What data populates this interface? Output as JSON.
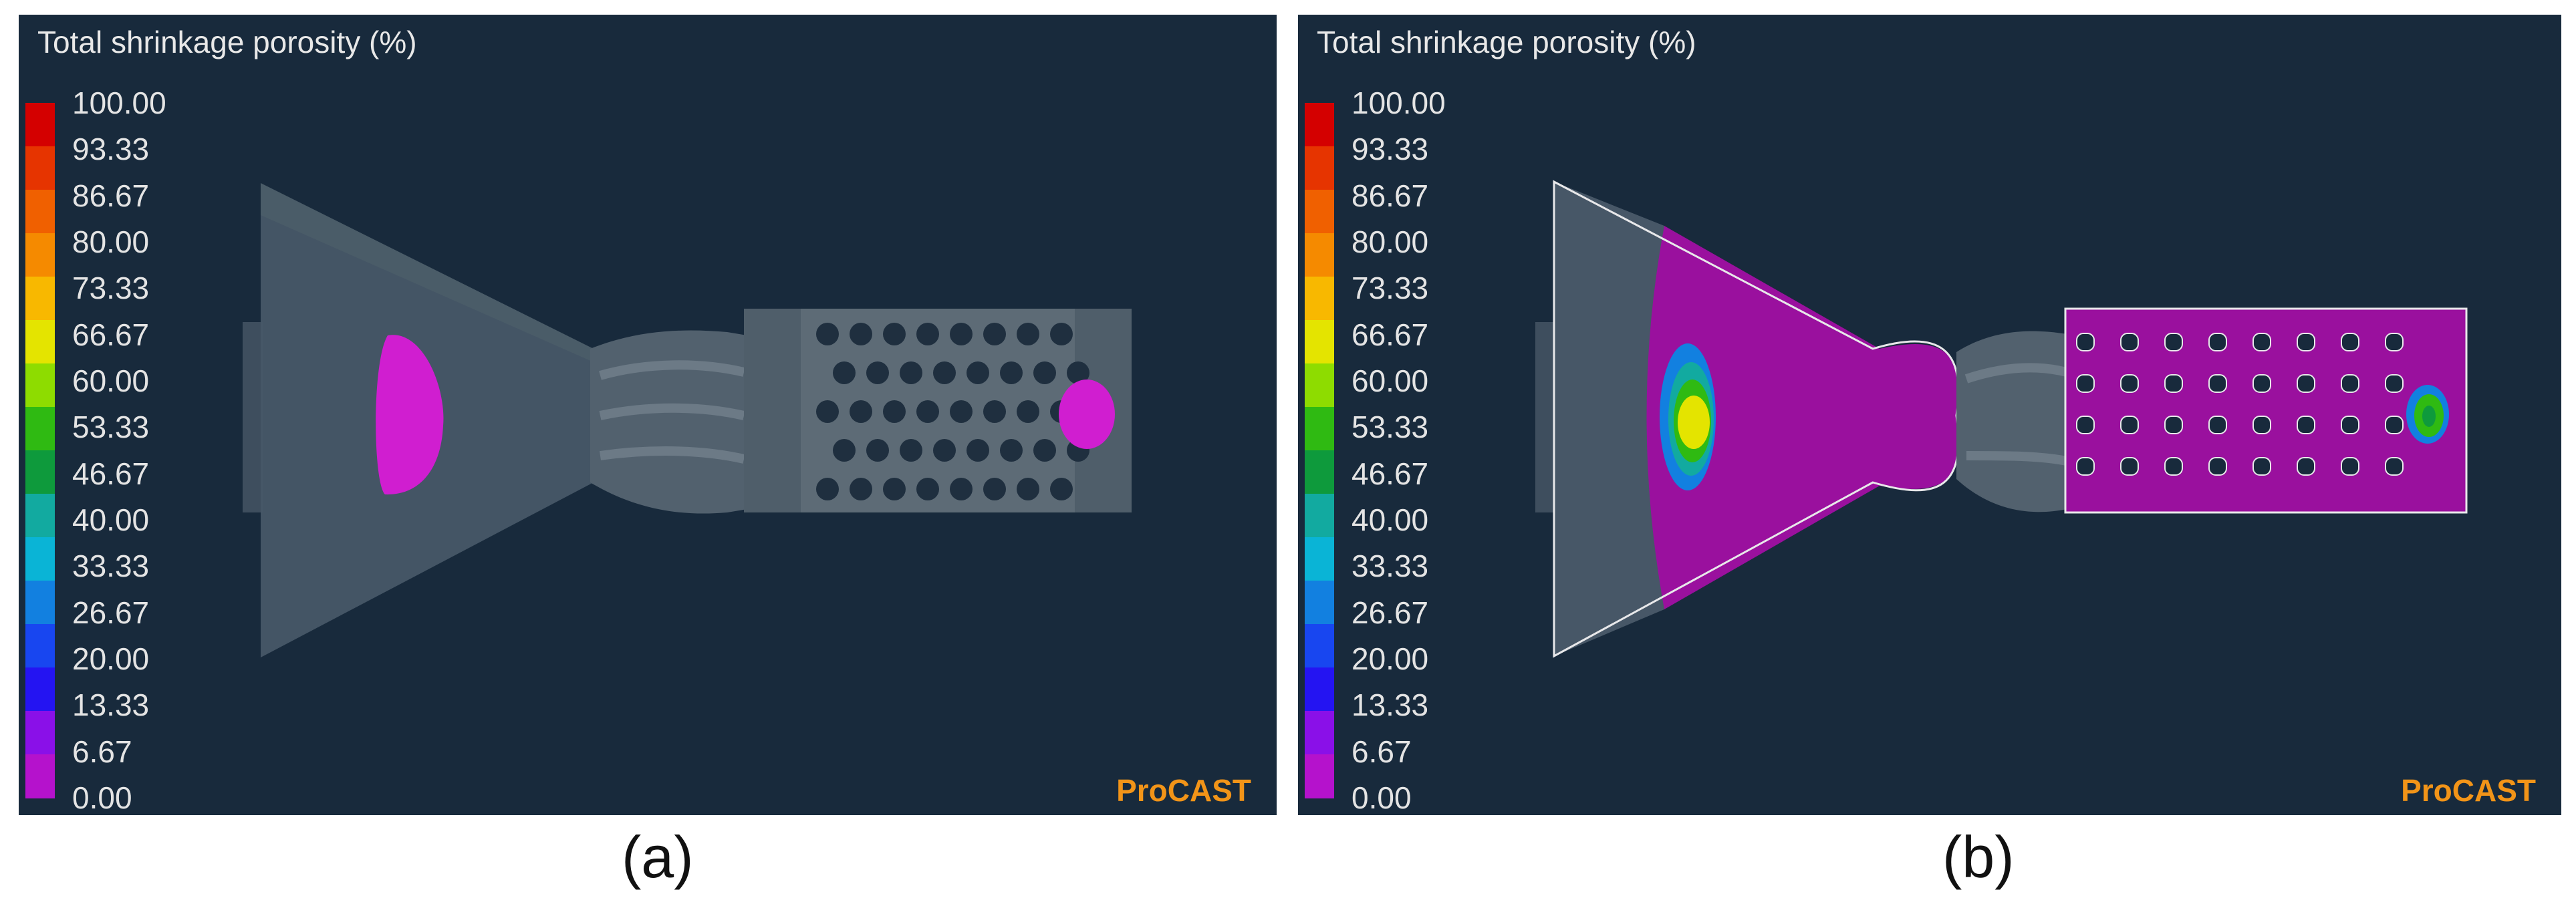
{
  "panels": [
    {
      "id": "a",
      "title": "Total shrinkage porosity (%)",
      "brand": "ProCAST",
      "caption": "(a)"
    },
    {
      "id": "b",
      "title": "Total shrinkage porosity (%)",
      "brand": "ProCAST",
      "caption": "(b)"
    }
  ],
  "legend": {
    "ticks": [
      "100.00",
      "93.33",
      "86.67",
      "80.00",
      "73.33",
      "66.67",
      "60.00",
      "53.33",
      "46.67",
      "40.00",
      "33.33",
      "26.67",
      "20.00",
      "13.33",
      "6.67",
      "0.00"
    ],
    "colors": [
      "#d40000",
      "#e63400",
      "#f06000",
      "#f58a00",
      "#f8b800",
      "#e4e400",
      "#8edc00",
      "#2fba12",
      "#0e9a3c",
      "#12aaa0",
      "#0ab4d6",
      "#1280e0",
      "#1846f0",
      "#2414f2",
      "#8a10e8",
      "#b512cc"
    ]
  }
}
